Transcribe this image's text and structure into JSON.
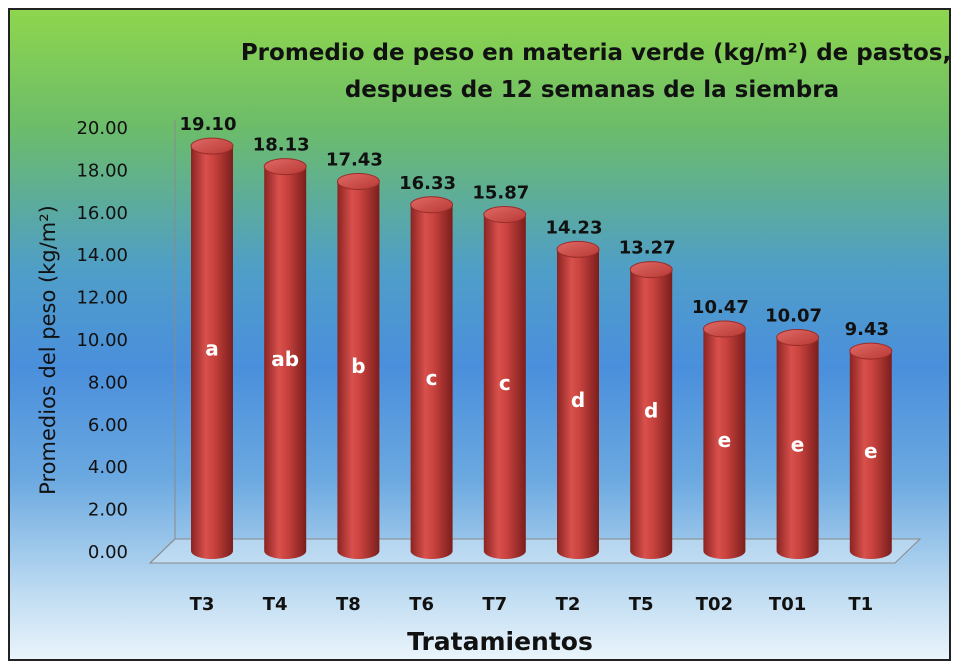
{
  "chart_data": {
    "type": "bar",
    "title_line1": "Promedio de peso en  materia verde (kg/m²) de pastos,",
    "title_line2": "despues de 12 semanas de la siembra",
    "xlabel": "Tratamientos",
    "ylabel": "Promedios del peso  (kg/m²)",
    "categories": [
      "T3",
      "T4",
      "T8",
      "T6",
      "T7",
      "T2",
      "T5",
      "T02",
      "T01",
      "T1"
    ],
    "values": [
      19.1,
      18.13,
      17.43,
      16.33,
      15.87,
      14.23,
      13.27,
      10.47,
      10.07,
      9.43
    ],
    "value_labels": [
      "19.10",
      "18.13",
      "17.43",
      "16.33",
      "15.87",
      "14.23",
      "13.27",
      "10.47",
      "10.07",
      "9.43"
    ],
    "groups": [
      "a",
      "ab",
      "b",
      "c",
      "c",
      "d",
      "d",
      "e",
      "e",
      "e"
    ],
    "ylim": [
      0,
      20
    ],
    "yticks": [
      "0.00",
      "2.00",
      "4.00",
      "6.00",
      "8.00",
      "10.00",
      "12.00",
      "14.00",
      "16.00",
      "18.00",
      "20.00"
    ],
    "bar_color": "#c0403c",
    "grid": false,
    "legend": "none"
  }
}
